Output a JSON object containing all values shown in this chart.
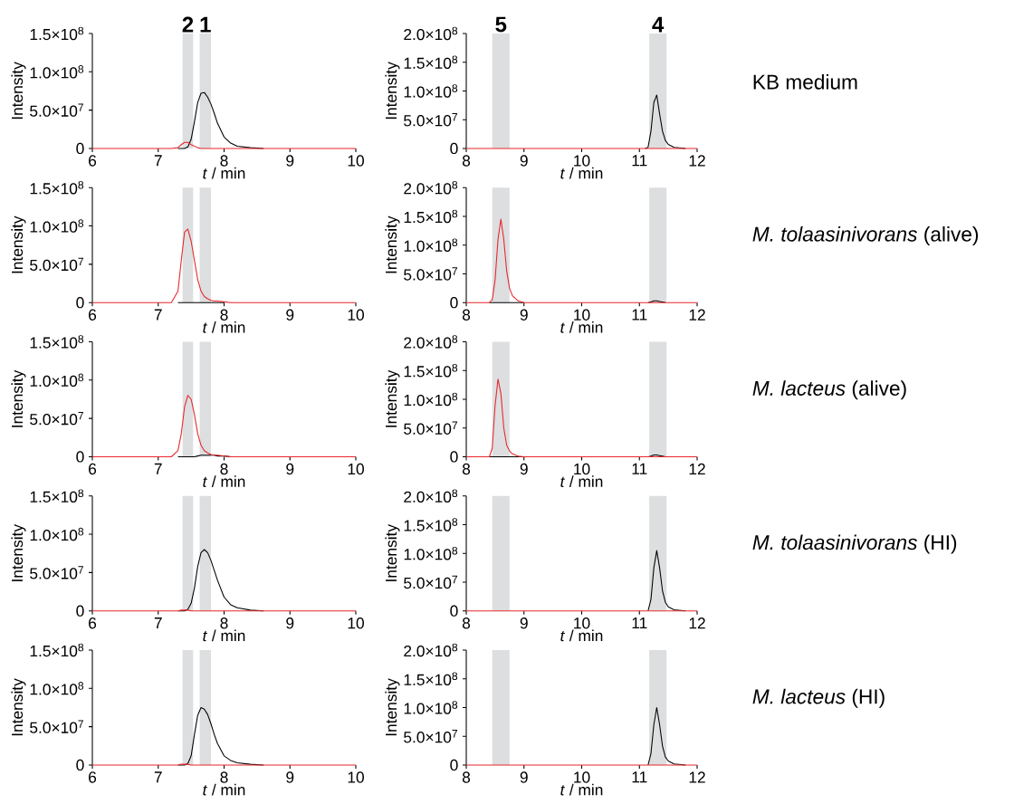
{
  "chart_data": [
    {
      "type": "line",
      "xlabel": "*t* / min",
      "ylabel": "Intensity",
      "xlim": [
        6,
        10
      ],
      "xticks": [
        6,
        7,
        8,
        9,
        10
      ],
      "ylim": [
        0,
        150000000
      ],
      "yticks": [
        0,
        {
          "value": 50000000,
          "label": "5.0×10$^{7}$"
        },
        {
          "value": 100000000,
          "label": "1.0×10$^{8}$"
        },
        {
          "value": 150000000,
          "label": "1.5×10$^{8}$"
        }
      ],
      "bands": [
        {
          "axis": "x",
          "from": 7.37,
          "to": 7.53,
          "label": "2",
          "color": "#dcdee0"
        },
        {
          "axis": "x",
          "from": 7.63,
          "to": 7.8,
          "label": "1",
          "color": "#dcdee0"
        }
      ],
      "x": [
        6,
        7.2,
        7.3,
        7.35,
        7.4,
        7.45,
        7.5,
        7.55,
        7.6,
        7.65,
        7.7,
        7.75,
        7.8,
        7.85,
        7.9,
        8.0,
        8.1,
        8.2,
        8.4,
        8.6,
        9,
        10
      ],
      "series": [
        {
          "color": "#000000",
          "values": [
            null,
            null,
            0,
            0,
            0,
            2000000,
            12000000,
            35000000,
            60000000,
            72000000,
            73000000,
            67000000,
            58000000,
            46000000,
            33000000,
            15000000,
            7000000,
            3000000,
            1000000,
            0,
            null,
            null
          ]
        },
        {
          "color": "#e8262a",
          "values": [
            0,
            0,
            1000000,
            5000000,
            8000000,
            8000000,
            5000000,
            3000000,
            1000000,
            0,
            0,
            0,
            0,
            0,
            0,
            0,
            0,
            0,
            0,
            0,
            0,
            0
          ]
        }
      ]
    },
    {
      "type": "line",
      "xlabel": "*t* / min",
      "ylabel": "Intensity",
      "xlim": [
        8,
        12
      ],
      "xticks": [
        8,
        9,
        10,
        11,
        12
      ],
      "ylim": [
        0,
        200000000
      ],
      "yticks": [
        0,
        {
          "value": 50000000,
          "label": "5.0×10$^{7}$"
        },
        {
          "value": 100000000,
          "label": "1.0×10$^{8}$"
        },
        {
          "value": 150000000,
          "label": "1.5×10$^{8}$"
        },
        {
          "value": 200000000,
          "label": "2.0×10$^{8}$"
        }
      ],
      "bands": [
        {
          "axis": "x",
          "from": 8.45,
          "to": 8.75,
          "label": "5",
          "color": "#dcdee0"
        },
        {
          "axis": "x",
          "from": 11.17,
          "to": 11.47,
          "label": "4",
          "color": "#dcdee0"
        }
      ],
      "annotations": [
        "KB medium"
      ],
      "x": [
        8,
        8.4,
        8.45,
        8.5,
        8.55,
        8.6,
        8.65,
        8.7,
        8.75,
        8.8,
        8.9,
        9,
        11.1,
        11.15,
        11.2,
        11.25,
        11.3,
        11.35,
        11.4,
        11.45,
        11.5,
        11.6,
        11.8,
        12
      ],
      "series": [
        {
          "color": "#000000",
          "values": [
            null,
            null,
            null,
            null,
            null,
            null,
            null,
            null,
            null,
            null,
            null,
            null,
            0,
            2000000,
            30000000,
            80000000,
            93000000,
            60000000,
            30000000,
            14000000,
            7000000,
            2000000,
            0,
            null
          ]
        },
        {
          "color": "#e8262a",
          "values": [
            0,
            0,
            0,
            0,
            0,
            0,
            0,
            0,
            0,
            0,
            0,
            0,
            0,
            0,
            0,
            0,
            0,
            0,
            0,
            0,
            0,
            0,
            0,
            0
          ]
        }
      ]
    },
    {
      "type": "line",
      "xlabel": "*t* / min",
      "ylabel": "Intensity",
      "xlim": [
        6,
        10
      ],
      "xticks": [
        6,
        7,
        8,
        9,
        10
      ],
      "ylim": [
        0,
        150000000
      ],
      "yticks": [
        0,
        {
          "value": 50000000,
          "label": "5.0×10$^{7}$"
        },
        {
          "value": 100000000,
          "label": "1.0×10$^{8}$"
        },
        {
          "value": 150000000,
          "label": "1.5×10$^{8}$"
        }
      ],
      "bands": [
        {
          "axis": "x",
          "from": 7.37,
          "to": 7.53,
          "color": "#dcdee0"
        },
        {
          "axis": "x",
          "from": 7.63,
          "to": 7.8,
          "color": "#dcdee0"
        }
      ],
      "x": [
        6,
        7.2,
        7.3,
        7.35,
        7.4,
        7.45,
        7.5,
        7.55,
        7.6,
        7.65,
        7.7,
        7.75,
        7.8,
        7.85,
        7.9,
        8.0,
        8.1,
        8.2,
        8.4,
        8.6,
        9,
        10
      ],
      "series": [
        {
          "color": "#000000",
          "values": [
            null,
            null,
            0,
            0,
            0,
            0,
            0,
            0,
            0,
            0,
            0,
            0,
            0,
            0,
            0,
            0,
            null,
            null,
            null,
            null,
            null,
            null
          ]
        },
        {
          "color": "#e8262a",
          "values": [
            0,
            0,
            15000000,
            55000000,
            92000000,
            96000000,
            80000000,
            55000000,
            30000000,
            15000000,
            8000000,
            5000000,
            3000000,
            2000000,
            2000000,
            1000000,
            0,
            0,
            0,
            0,
            0,
            0
          ]
        }
      ]
    },
    {
      "type": "line",
      "xlabel": "*t* / min",
      "ylabel": "Intensity",
      "xlim": [
        8,
        12
      ],
      "xticks": [
        8,
        9,
        10,
        11,
        12
      ],
      "ylim": [
        0,
        200000000
      ],
      "yticks": [
        0,
        {
          "value": 50000000,
          "label": "5.0×10$^{7}$"
        },
        {
          "value": 100000000,
          "label": "1.0×10$^{8}$"
        },
        {
          "value": 150000000,
          "label": "1.5×10$^{8}$"
        },
        {
          "value": 200000000,
          "label": "2.0×10$^{8}$"
        }
      ],
      "bands": [
        {
          "axis": "x",
          "from": 8.45,
          "to": 8.75,
          "color": "#dcdee0"
        },
        {
          "axis": "x",
          "from": 11.17,
          "to": 11.47,
          "color": "#dcdee0"
        }
      ],
      "annotations": [
        "*M. tolaasinivorans* (alive)"
      ],
      "x": [
        8,
        8.4,
        8.45,
        8.5,
        8.55,
        8.6,
        8.65,
        8.7,
        8.75,
        8.8,
        8.9,
        9,
        11.1,
        11.15,
        11.2,
        11.25,
        11.3,
        11.35,
        11.4,
        11.45,
        11.5,
        11.6,
        11.8,
        12
      ],
      "series": [
        {
          "color": "#000000",
          "values": [
            null,
            0,
            0,
            0,
            0,
            0,
            0,
            0,
            0,
            0,
            0,
            0,
            null,
            0,
            1000000,
            3000000,
            3000000,
            2000000,
            1000000,
            0,
            null,
            null,
            null,
            null
          ]
        },
        {
          "color": "#e8262a",
          "values": [
            0,
            0,
            5000000,
            40000000,
            110000000,
            145000000,
            110000000,
            55000000,
            25000000,
            12000000,
            3000000,
            0,
            0,
            0,
            0,
            0,
            0,
            0,
            0,
            0,
            0,
            0,
            0,
            0
          ]
        }
      ]
    },
    {
      "type": "line",
      "xlabel": "*t* / min",
      "ylabel": "Intensity",
      "xlim": [
        6,
        10
      ],
      "xticks": [
        6,
        7,
        8,
        9,
        10
      ],
      "ylim": [
        0,
        150000000
      ],
      "yticks": [
        0,
        {
          "value": 50000000,
          "label": "5.0×10$^{7}$"
        },
        {
          "value": 100000000,
          "label": "1.0×10$^{8}$"
        },
        {
          "value": 150000000,
          "label": "1.5×10$^{8}$"
        }
      ],
      "bands": [
        {
          "axis": "x",
          "from": 7.37,
          "to": 7.53,
          "color": "#dcdee0"
        },
        {
          "axis": "x",
          "from": 7.63,
          "to": 7.8,
          "color": "#dcdee0"
        }
      ],
      "x": [
        6,
        7.2,
        7.3,
        7.35,
        7.4,
        7.45,
        7.5,
        7.55,
        7.6,
        7.65,
        7.7,
        7.75,
        7.8,
        7.85,
        7.9,
        8.0,
        8.1,
        8.2,
        8.4,
        8.6,
        9,
        10
      ],
      "series": [
        {
          "color": "#000000",
          "values": [
            null,
            null,
            0,
            0,
            0,
            0,
            0,
            0,
            1000000,
            2000000,
            2000000,
            2000000,
            2000000,
            2000000,
            1000000,
            1000000,
            0,
            null,
            null,
            null,
            null,
            null
          ]
        },
        {
          "color": "#e8262a",
          "values": [
            0,
            0,
            8000000,
            30000000,
            65000000,
            80000000,
            75000000,
            55000000,
            30000000,
            15000000,
            8000000,
            5000000,
            3000000,
            2000000,
            2000000,
            1000000,
            0,
            0,
            0,
            0,
            0,
            0
          ]
        }
      ]
    },
    {
      "type": "line",
      "xlabel": "*t* / min",
      "ylabel": "Intensity",
      "xlim": [
        8,
        12
      ],
      "xticks": [
        8,
        9,
        10,
        11,
        12
      ],
      "ylim": [
        0,
        200000000
      ],
      "yticks": [
        0,
        {
          "value": 50000000,
          "label": "5.0×10$^{7}$"
        },
        {
          "value": 100000000,
          "label": "1.0×10$^{8}$"
        },
        {
          "value": 150000000,
          "label": "1.5×10$^{8}$"
        },
        {
          "value": 200000000,
          "label": "2.0×10$^{8}$"
        }
      ],
      "bands": [
        {
          "axis": "x",
          "from": 8.45,
          "to": 8.75,
          "color": "#dcdee0"
        },
        {
          "axis": "x",
          "from": 11.17,
          "to": 11.47,
          "color": "#dcdee0"
        }
      ],
      "annotations": [
        "*M. lacteus* (alive)"
      ],
      "x": [
        8,
        8.4,
        8.45,
        8.5,
        8.55,
        8.6,
        8.65,
        8.7,
        8.75,
        8.8,
        8.9,
        9,
        11.1,
        11.15,
        11.2,
        11.25,
        11.3,
        11.35,
        11.4,
        11.45,
        11.5,
        11.6,
        11.8,
        12
      ],
      "series": [
        {
          "color": "#000000",
          "values": [
            null,
            0,
            0,
            0,
            0,
            0,
            0,
            0,
            0,
            0,
            0,
            0,
            null,
            0,
            1000000,
            3000000,
            3000000,
            2000000,
            1000000,
            0,
            null,
            null,
            null,
            null
          ]
        },
        {
          "color": "#e8262a",
          "values": [
            0,
            0,
            15000000,
            90000000,
            135000000,
            110000000,
            50000000,
            20000000,
            10000000,
            5000000,
            1000000,
            0,
            0,
            0,
            0,
            0,
            0,
            0,
            0,
            0,
            0,
            0,
            0,
            0
          ]
        }
      ]
    },
    {
      "type": "line",
      "xlabel": "*t* / min",
      "ylabel": "Intensity",
      "xlim": [
        6,
        10
      ],
      "xticks": [
        6,
        7,
        8,
        9,
        10
      ],
      "ylim": [
        0,
        150000000
      ],
      "yticks": [
        0,
        {
          "value": 50000000,
          "label": "5.0×10$^{7}$"
        },
        {
          "value": 100000000,
          "label": "1.0×10$^{8}$"
        },
        {
          "value": 150000000,
          "label": "1.5×10$^{8}$"
        }
      ],
      "bands": [
        {
          "axis": "x",
          "from": 7.37,
          "to": 7.53,
          "color": "#dcdee0"
        },
        {
          "axis": "x",
          "from": 7.63,
          "to": 7.8,
          "color": "#dcdee0"
        }
      ],
      "x": [
        6,
        7.2,
        7.3,
        7.35,
        7.4,
        7.45,
        7.5,
        7.55,
        7.6,
        7.65,
        7.7,
        7.75,
        7.8,
        7.85,
        7.9,
        8.0,
        8.1,
        8.2,
        8.4,
        8.6,
        9,
        10
      ],
      "series": [
        {
          "color": "#000000",
          "values": [
            null,
            null,
            0,
            0,
            0,
            2000000,
            10000000,
            30000000,
            58000000,
            76000000,
            80000000,
            76000000,
            66000000,
            53000000,
            40000000,
            18000000,
            8000000,
            4000000,
            1000000,
            0,
            null,
            null
          ]
        },
        {
          "color": "#e8262a",
          "values": [
            0,
            0,
            0,
            1000000,
            1000000,
            1000000,
            0,
            0,
            0,
            0,
            0,
            0,
            0,
            0,
            0,
            0,
            0,
            0,
            0,
            0,
            0,
            0
          ]
        }
      ]
    },
    {
      "type": "line",
      "xlabel": "*t* / min",
      "ylabel": "Intensity",
      "xlim": [
        8,
        12
      ],
      "xticks": [
        8,
        9,
        10,
        11,
        12
      ],
      "ylim": [
        0,
        200000000
      ],
      "yticks": [
        0,
        {
          "value": 50000000,
          "label": "5.0×10$^{7}$"
        },
        {
          "value": 100000000,
          "label": "1.0×10$^{8}$"
        },
        {
          "value": 150000000,
          "label": "1.5×10$^{8}$"
        },
        {
          "value": 200000000,
          "label": "2.0×10$^{8}$"
        }
      ],
      "bands": [
        {
          "axis": "x",
          "from": 8.45,
          "to": 8.75,
          "color": "#dcdee0"
        },
        {
          "axis": "x",
          "from": 11.17,
          "to": 11.47,
          "color": "#dcdee0"
        }
      ],
      "annotations": [
        "*M. tolaasinivorans* (HI)"
      ],
      "x": [
        8,
        8.4,
        8.45,
        8.5,
        8.55,
        8.6,
        8.65,
        8.7,
        8.75,
        8.8,
        8.9,
        9,
        11.1,
        11.15,
        11.2,
        11.25,
        11.3,
        11.35,
        11.4,
        11.45,
        11.5,
        11.6,
        11.8,
        12
      ],
      "series": [
        {
          "color": "#000000",
          "values": [
            null,
            null,
            null,
            null,
            null,
            null,
            null,
            null,
            null,
            null,
            null,
            null,
            null,
            0,
            20000000,
            75000000,
            105000000,
            75000000,
            35000000,
            15000000,
            7000000,
            2000000,
            0,
            null
          ]
        },
        {
          "color": "#e8262a",
          "values": [
            0,
            0,
            0,
            0,
            0,
            0,
            0,
            0,
            0,
            0,
            0,
            0,
            0,
            0,
            0,
            0,
            0,
            0,
            0,
            0,
            0,
            0,
            0,
            0
          ]
        }
      ]
    },
    {
      "type": "line",
      "xlabel": "*t* / min",
      "ylabel": "Intensity",
      "xlim": [
        6,
        10
      ],
      "xticks": [
        6,
        7,
        8,
        9,
        10
      ],
      "ylim": [
        0,
        150000000
      ],
      "yticks": [
        0,
        {
          "value": 50000000,
          "label": "5.0×10$^{7}$"
        },
        {
          "value": 100000000,
          "label": "1.0×10$^{8}$"
        },
        {
          "value": 150000000,
          "label": "1.5×10$^{8}$"
        }
      ],
      "bands": [
        {
          "axis": "x",
          "from": 7.37,
          "to": 7.53,
          "color": "#dcdee0"
        },
        {
          "axis": "x",
          "from": 7.63,
          "to": 7.8,
          "color": "#dcdee0"
        }
      ],
      "x": [
        6,
        7.2,
        7.3,
        7.35,
        7.4,
        7.45,
        7.5,
        7.55,
        7.6,
        7.65,
        7.7,
        7.75,
        7.8,
        7.85,
        7.9,
        8.0,
        8.1,
        8.2,
        8.4,
        8.6,
        9,
        10
      ],
      "series": [
        {
          "color": "#000000",
          "values": [
            null,
            null,
            0,
            0,
            0,
            2000000,
            12000000,
            40000000,
            65000000,
            75000000,
            73000000,
            66000000,
            54000000,
            40000000,
            28000000,
            12000000,
            6000000,
            3000000,
            1000000,
            0,
            null,
            null
          ]
        },
        {
          "color": "#e8262a",
          "values": [
            0,
            0,
            0,
            1000000,
            1000000,
            1000000,
            0,
            0,
            0,
            0,
            0,
            0,
            0,
            0,
            0,
            0,
            0,
            0,
            0,
            0,
            0,
            0
          ]
        }
      ]
    },
    {
      "type": "line",
      "xlabel": "*t* / min",
      "ylabel": "Intensity",
      "xlim": [
        8,
        12
      ],
      "xticks": [
        8,
        9,
        10,
        11,
        12
      ],
      "ylim": [
        0,
        200000000
      ],
      "yticks": [
        0,
        {
          "value": 50000000,
          "label": "5.0×10$^{7}$"
        },
        {
          "value": 100000000,
          "label": "1.0×10$^{8}$"
        },
        {
          "value": 150000000,
          "label": "1.5×10$^{8}$"
        },
        {
          "value": 200000000,
          "label": "2.0×10$^{8}$"
        }
      ],
      "bands": [
        {
          "axis": "x",
          "from": 8.45,
          "to": 8.75,
          "color": "#dcdee0"
        },
        {
          "axis": "x",
          "from": 11.17,
          "to": 11.47,
          "color": "#dcdee0"
        }
      ],
      "annotations": [
        "*M. lacteus* (HI)"
      ],
      "x": [
        8,
        8.4,
        8.45,
        8.5,
        8.55,
        8.6,
        8.65,
        8.7,
        8.75,
        8.8,
        8.9,
        9,
        11.1,
        11.15,
        11.2,
        11.25,
        11.3,
        11.35,
        11.4,
        11.45,
        11.5,
        11.6,
        11.8,
        12
      ],
      "series": [
        {
          "color": "#000000",
          "values": [
            null,
            null,
            null,
            null,
            null,
            null,
            null,
            null,
            null,
            null,
            null,
            null,
            null,
            0,
            20000000,
            70000000,
            100000000,
            70000000,
            33000000,
            14000000,
            7000000,
            2000000,
            0,
            null
          ]
        },
        {
          "color": "#e8262a",
          "values": [
            0,
            0,
            0,
            0,
            0,
            0,
            0,
            0,
            0,
            0,
            0,
            0,
            0,
            0,
            0,
            0,
            0,
            0,
            0,
            0,
            0,
            0,
            0,
            0
          ]
        }
      ]
    }
  ]
}
